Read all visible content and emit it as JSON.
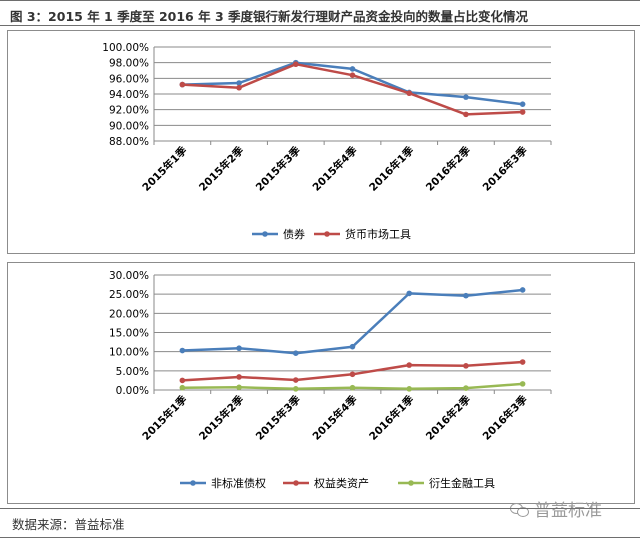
{
  "figure_title": "图 3：2015 年 1 季度至 2016 年 3 季度银行新发行理财产品资金投向的数量占比变化情况",
  "source": "数据来源：普益标准",
  "watermark": "普益标准",
  "watermark_icon": "wechat-icon",
  "chart_data": [
    {
      "type": "line",
      "categories": [
        "2015年1季",
        "2015年2季",
        "2015年3季",
        "2015年4季",
        "2016年1季",
        "2016年2季",
        "2016年3季"
      ],
      "y_ticks": [
        "100.00%",
        "98.00%",
        "96.00%",
        "94.00%",
        "92.00%",
        "90.00%",
        "88.00%"
      ],
      "ylim": [
        88,
        100
      ],
      "y_unit": "%",
      "grid": true,
      "legend_position": "bottom",
      "series": [
        {
          "name": "债券",
          "color": "#4a7eba",
          "values": [
            95.2,
            95.4,
            98.0,
            97.2,
            94.2,
            93.6,
            92.7
          ]
        },
        {
          "name": "货币市场工具",
          "color": "#be4b48",
          "values": [
            95.2,
            94.8,
            97.8,
            96.4,
            94.1,
            91.4,
            91.7
          ]
        }
      ]
    },
    {
      "type": "line",
      "categories": [
        "2015年1季",
        "2015年2季",
        "2015年3季",
        "2015年4季",
        "2016年1季",
        "2016年2季",
        "2016年3季"
      ],
      "y_ticks": [
        "30.00%",
        "25.00%",
        "20.00%",
        "15.00%",
        "10.00%",
        "5.00%",
        "0.00%"
      ],
      "ylim": [
        0,
        30
      ],
      "y_unit": "%",
      "grid": true,
      "legend_position": "bottom",
      "series": [
        {
          "name": "非标准债权",
          "color": "#4a7eba",
          "values": [
            10.3,
            10.9,
            9.6,
            11.3,
            25.2,
            24.6,
            26.1
          ]
        },
        {
          "name": "权益类资产",
          "color": "#be4b48",
          "values": [
            2.5,
            3.4,
            2.6,
            4.1,
            6.5,
            6.3,
            7.3
          ]
        },
        {
          "name": "衍生金融工具",
          "color": "#98b954",
          "values": [
            0.6,
            0.7,
            0.3,
            0.6,
            0.3,
            0.5,
            1.6
          ]
        }
      ]
    }
  ]
}
